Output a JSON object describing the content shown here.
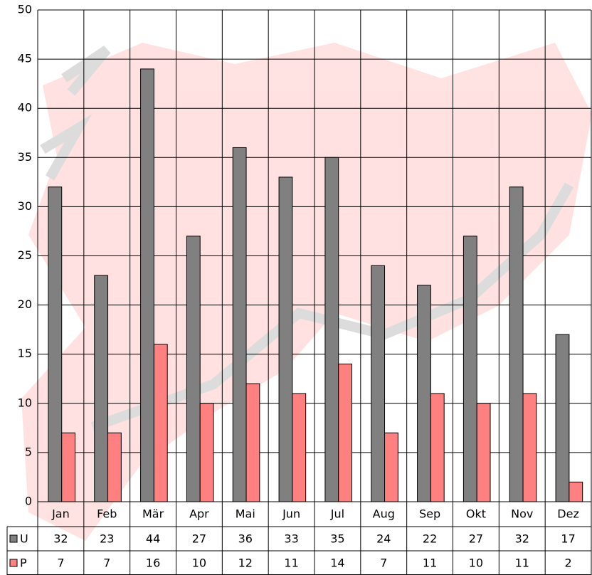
{
  "chart_data": {
    "type": "bar",
    "categories": [
      "Jan",
      "Feb",
      "Mär",
      "Apr",
      "Mai",
      "Jun",
      "Jul",
      "Aug",
      "Sep",
      "Okt",
      "Nov",
      "Dez"
    ],
    "series": [
      {
        "name": "U",
        "color": "#808080",
        "values": [
          32,
          23,
          44,
          27,
          36,
          33,
          35,
          24,
          22,
          27,
          32,
          17
        ]
      },
      {
        "name": "P",
        "color": "#ff8080",
        "values": [
          7,
          7,
          16,
          10,
          12,
          11,
          14,
          7,
          11,
          10,
          11,
          2
        ]
      }
    ],
    "ylim": [
      0,
      50
    ],
    "yticks": [
      0,
      5,
      10,
      15,
      20,
      25,
      30,
      35,
      40,
      45,
      50
    ],
    "grid": true,
    "data_table": true
  }
}
